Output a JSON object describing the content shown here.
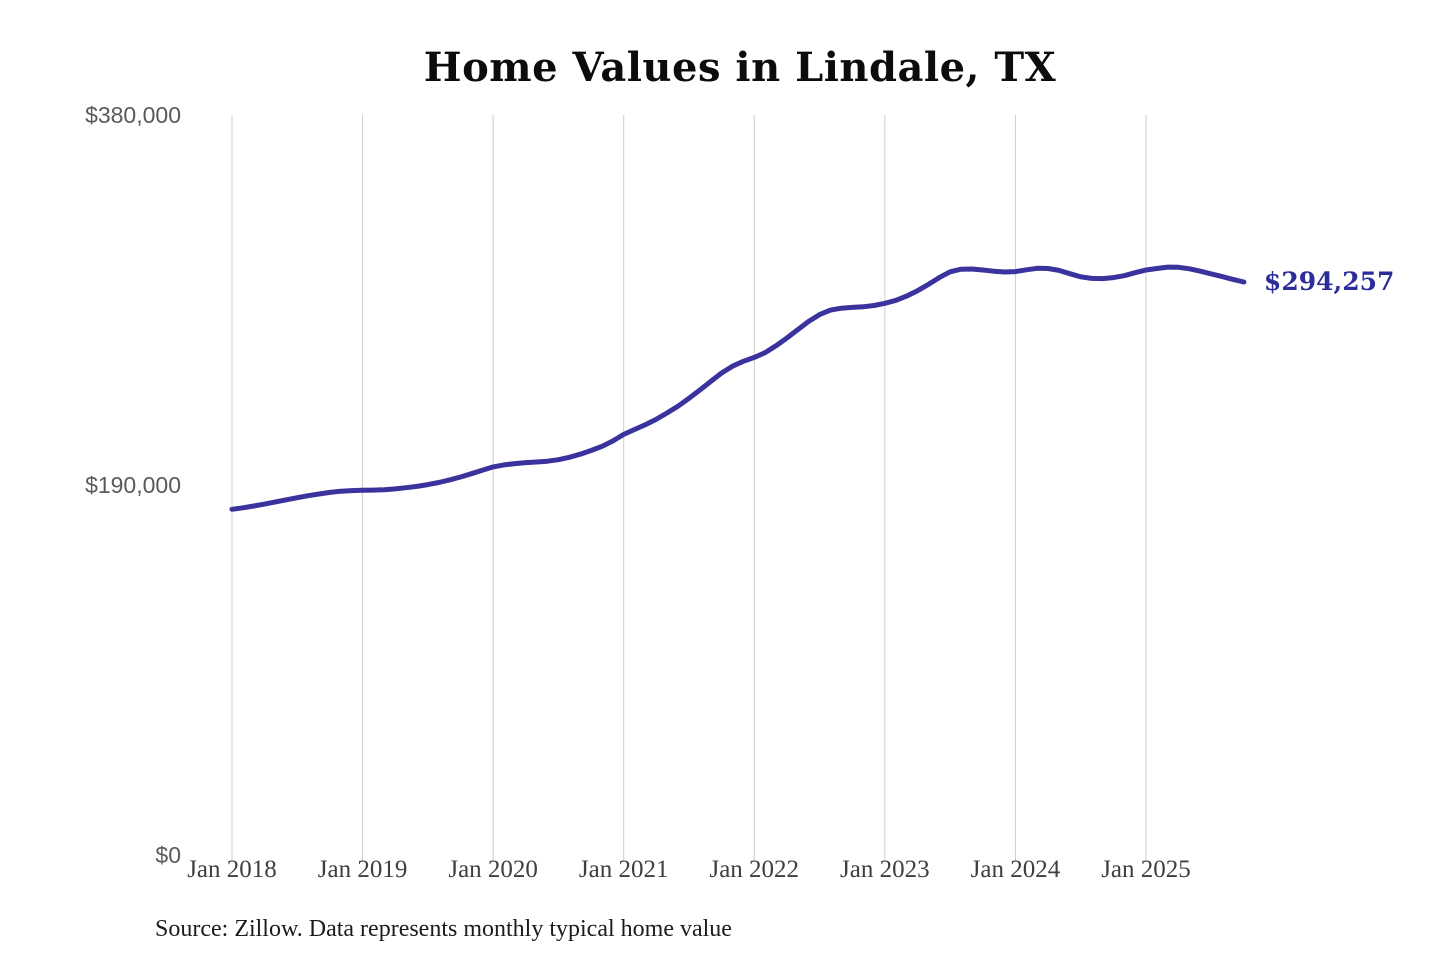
{
  "chart_data": {
    "type": "line",
    "title": "Home Values in Lindale, TX",
    "source_note": "Source: Zillow. Data represents monthly typical home value",
    "end_label": "$294,257",
    "end_value": 294257,
    "x_tick_labels": [
      "Jan 2018",
      "Jan 2019",
      "Jan 2020",
      "Jan 2021",
      "Jan 2022",
      "Jan 2023",
      "Jan 2024",
      "Jan 2025"
    ],
    "y_ticks": [
      {
        "label": "$0",
        "value": 0
      },
      {
        "label": "$190,000",
        "value": 190000
      },
      {
        "label": "$380,000",
        "value": 380000
      }
    ],
    "ylim": [
      0,
      380000
    ],
    "grid": "vertical-only",
    "legend": "none",
    "colors": {
      "line": "#3a339e",
      "end_label": "#2d2c9b",
      "gridline": "#cccccc"
    },
    "series": [
      {
        "name": "Monthly typical home value",
        "start": "2018-01",
        "frequency": "monthly",
        "values": [
          177500,
          178300,
          179200,
          180200,
          181300,
          182400,
          183500,
          184500,
          185400,
          186200,
          186800,
          187100,
          187300,
          187400,
          187600,
          188000,
          188600,
          189300,
          190200,
          191300,
          192600,
          194100,
          195800,
          197600,
          199300,
          200300,
          201000,
          201500,
          201800,
          202200,
          203000,
          204200,
          205800,
          207700,
          209800,
          212600,
          216000,
          218500,
          221000,
          223800,
          227000,
          230500,
          234500,
          238800,
          243200,
          247500,
          251000,
          253500,
          255500,
          258000,
          261500,
          265500,
          269800,
          274000,
          277500,
          279800,
          280800,
          281200,
          281500,
          282200,
          283300,
          284800,
          287000,
          289800,
          293000,
          296500,
          299500,
          300800,
          300900,
          300400,
          299800,
          299400,
          299600,
          300500,
          301300,
          301200,
          300200,
          298500,
          296900,
          296100,
          296000,
          296500,
          297500,
          299000,
          300400,
          301200,
          301900,
          301800,
          301000,
          299800,
          298400,
          297000,
          295600,
          294257
        ]
      }
    ]
  }
}
